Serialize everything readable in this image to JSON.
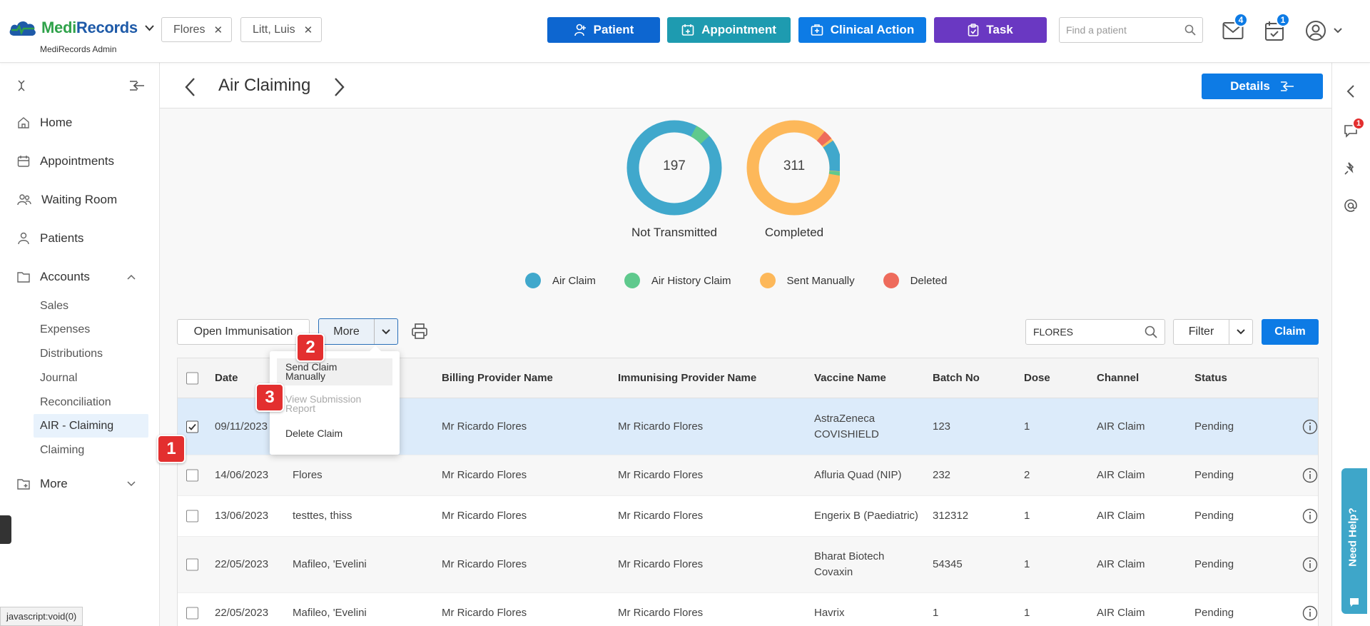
{
  "brand": {
    "name_part1": "Medi",
    "name_part2": "Records",
    "sub": "MediRecords Admin"
  },
  "patient_tabs": [
    {
      "label": "Flores"
    },
    {
      "label": "Litt, Luis"
    }
  ],
  "top_buttons": {
    "patient": "Patient",
    "appointment": "Appointment",
    "clinical_action": "Clinical Action",
    "task": "Task"
  },
  "search": {
    "placeholder": "Find a patient"
  },
  "badges": {
    "mail": "4",
    "tasks": "1",
    "chat": "1"
  },
  "sidebar": {
    "items": [
      {
        "label": "Home"
      },
      {
        "label": "Appointments"
      },
      {
        "label": "Waiting Room"
      },
      {
        "label": "Patients"
      },
      {
        "label": "Accounts"
      },
      {
        "label": "More"
      }
    ],
    "sub_items": [
      {
        "label": "Sales"
      },
      {
        "label": "Expenses"
      },
      {
        "label": "Distributions"
      },
      {
        "label": "Journal"
      },
      {
        "label": "Reconciliation"
      },
      {
        "label": "AIR - Claiming"
      },
      {
        "label": "Claiming"
      }
    ]
  },
  "page": {
    "title": "Air Claiming",
    "details_label": "Details"
  },
  "summary": [
    {
      "value": "197",
      "label": "Not Transmitted"
    },
    {
      "value": "311",
      "label": "Completed"
    }
  ],
  "legend": [
    {
      "label": "Air Claim",
      "color": "#40a8cc"
    },
    {
      "label": "Air History Claim",
      "color": "#5fc98d"
    },
    {
      "label": "Sent Manually",
      "color": "#fdb85a"
    },
    {
      "label": "Deleted",
      "color": "#ee6b5c"
    }
  ],
  "toolbar": {
    "open_immunisation": "Open Immunisation",
    "more": "More",
    "filter_search_value": "FLORES",
    "filter": "Filter",
    "claim": "Claim"
  },
  "dropdown": {
    "send_claim_manually_l1": "Send Claim",
    "send_claim_manually_l2": "Manually",
    "view_submission_l1": "View Submission",
    "view_submission_l2": "Report",
    "delete_claim": "Delete Claim"
  },
  "annotations": [
    "1",
    "2",
    "3"
  ],
  "table": {
    "headers": [
      "Date",
      "Billing Provider Name",
      "Immunising Provider Name",
      "Vaccine Name",
      "Batch No",
      "Dose",
      "Channel",
      "Status"
    ],
    "rows": [
      {
        "date": "09/11/2023",
        "patient": "",
        "billing": "Mr Ricardo Flores",
        "immunising": "Mr Ricardo Flores",
        "vaccine_l1": "AstraZeneca",
        "vaccine_l2": "COVISHIELD",
        "batch": "123",
        "dose": "1",
        "channel": "AIR Claim",
        "status": "Pending"
      },
      {
        "date": "14/06/2023",
        "patient": "Flores",
        "billing": "Mr Ricardo Flores",
        "immunising": "Mr Ricardo Flores",
        "vaccine_l1": "Afluria Quad (NIP)",
        "vaccine_l2": "",
        "batch": "232",
        "dose": "2",
        "channel": "AIR Claim",
        "status": "Pending"
      },
      {
        "date": "13/06/2023",
        "patient": "testtes, thiss",
        "billing": "Mr Ricardo Flores",
        "immunising": "Mr Ricardo Flores",
        "vaccine_l1": "Engerix B (Paediatric)",
        "vaccine_l2": "",
        "batch": "312312",
        "dose": "1",
        "channel": "AIR Claim",
        "status": "Pending"
      },
      {
        "date": "22/05/2023",
        "patient": "Mafileo, 'Evelini",
        "billing": "Mr Ricardo Flores",
        "immunising": "Mr Ricardo Flores",
        "vaccine_l1": "Bharat Biotech",
        "vaccine_l2": "Covaxin",
        "batch": "54345",
        "dose": "1",
        "channel": "AIR Claim",
        "status": "Pending"
      },
      {
        "date": "22/05/2023",
        "patient": "Mafileo, 'Evelini",
        "billing": "Mr Ricardo Flores",
        "immunising": "Mr Ricardo Flores",
        "vaccine_l1": "Havrix",
        "vaccine_l2": "",
        "batch": "1",
        "dose": "1",
        "channel": "AIR Claim",
        "status": "Pending"
      }
    ]
  },
  "need_help": "Need Help?",
  "status_bar": "javascript:void(0)"
}
